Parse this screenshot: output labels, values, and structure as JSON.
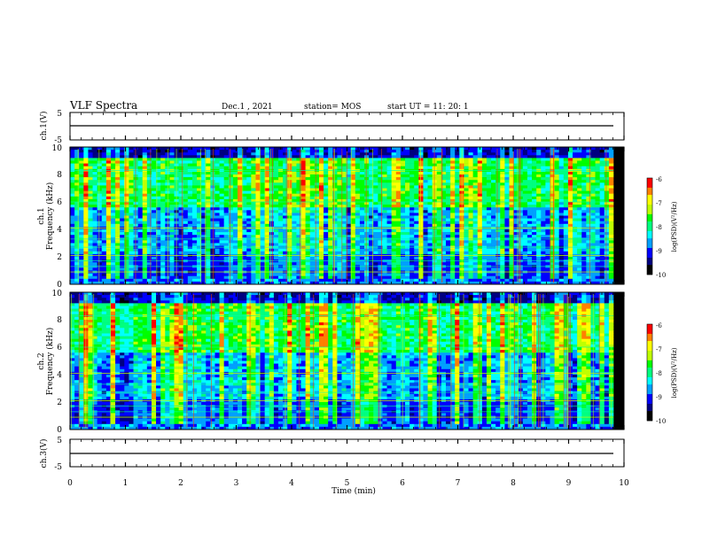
{
  "header": {
    "title": "VLF Spectra",
    "date": "Dec.1 , 2021",
    "station": "station= MOS",
    "start": "start UT =  11: 20: 1"
  },
  "colors": {
    "colormap": [
      "#000000",
      "#000080",
      "#0000ff",
      "#00a0ff",
      "#00ffff",
      "#00ff80",
      "#00ff00",
      "#c0ff00",
      "#ffff00",
      "#ff8000",
      "#ff0000"
    ]
  },
  "chart_data": [
    {
      "type": "line",
      "panel": "ch1-waveform",
      "ylabel": "ch.1(V)",
      "ylim": [
        -5,
        5
      ],
      "ytick_labels": [
        "5",
        "-5"
      ],
      "x": [
        0,
        10
      ],
      "values": [
        0,
        0
      ]
    },
    {
      "type": "heatmap",
      "panel": "ch1-spectrogram",
      "ylabel_top": "ch.1",
      "ylabel": "Frequency (kHz)",
      "ylim": [
        0,
        10
      ],
      "ytick_labels": [
        "0",
        "2",
        "4",
        "6",
        "8",
        "10"
      ],
      "xlim": [
        0,
        10
      ],
      "colorbar": {
        "label": "log(PSD)(V²/Hz)",
        "range": [
          -10,
          -6
        ],
        "tick_labels": [
          "-6",
          "-7",
          "-8",
          "-9",
          "-10"
        ]
      }
    },
    {
      "type": "heatmap",
      "panel": "ch2-spectrogram",
      "ylabel_top": "ch.2",
      "ylabel": "Frequency (kHz)",
      "ylim": [
        0,
        10
      ],
      "ytick_labels": [
        "0",
        "2",
        "4",
        "6",
        "8",
        "10"
      ],
      "xlim": [
        0,
        10
      ],
      "colorbar": {
        "label": "log(PSD)(V²/Hz)",
        "range": [
          -10,
          -6
        ],
        "tick_labels": [
          "-6",
          "-7",
          "-8",
          "-9",
          "-10"
        ]
      }
    },
    {
      "type": "line",
      "panel": "ch3-waveform",
      "ylabel": "ch.3(V)",
      "ylim": [
        -5,
        5
      ],
      "ytick_labels": [
        "5",
        "-5"
      ],
      "x": [
        0,
        10
      ],
      "values": [
        0,
        0
      ]
    }
  ],
  "xaxis": {
    "label": "Time (min)",
    "xlim": [
      0,
      10
    ],
    "tick_labels": [
      "0",
      "1",
      "2",
      "3",
      "4",
      "5",
      "6",
      "7",
      "8",
      "9",
      "10"
    ]
  }
}
